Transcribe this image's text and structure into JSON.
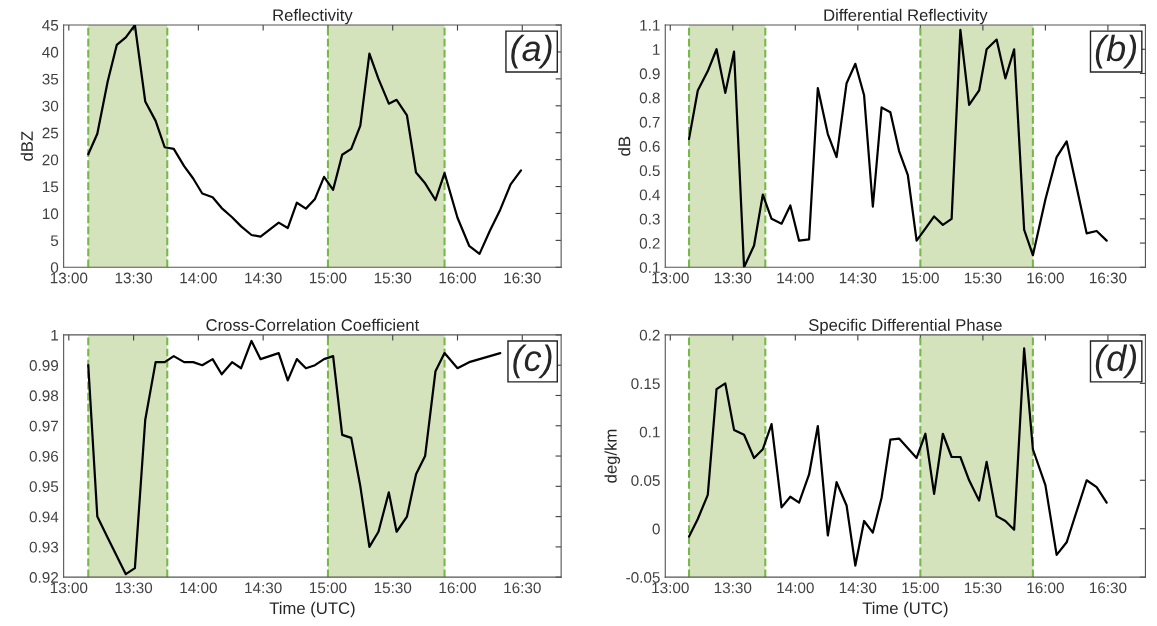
{
  "chart_data": [
    {
      "type": "line",
      "title": "Reflectivity",
      "ylabel": "dBZ",
      "annotations": [
        "(a)"
      ],
      "x": [
        13.15,
        13.22,
        13.3,
        13.37,
        13.44,
        13.51,
        13.59,
        13.67,
        13.74,
        13.81,
        13.89,
        13.96,
        14.03,
        14.11,
        14.18,
        14.26,
        14.33,
        14.41,
        14.48,
        14.55,
        14.62,
        14.69,
        14.76,
        14.83,
        14.9,
        14.97,
        15.04,
        15.11,
        15.18,
        15.25,
        15.32,
        15.39,
        15.47,
        15.53,
        15.61,
        15.68,
        15.75,
        15.83,
        15.9,
        16.0,
        16.09,
        16.17,
        16.25,
        16.33,
        16.41,
        16.49
      ],
      "ref_lines": [
        {
          "axis": "x",
          "value": 13.15,
          "color": "#77b84a",
          "line_style": "dashed"
        },
        {
          "axis": "x",
          "value": 13.76,
          "color": "#77b84a",
          "line_style": "dashed"
        },
        {
          "axis": "x",
          "value": 15.0,
          "color": "#77b84a",
          "line_style": "dashed"
        },
        {
          "axis": "x",
          "value": 15.9,
          "color": "#77b84a",
          "line_style": "dashed"
        }
      ],
      "series": [
        {
          "color": "#000000",
          "values": [
            21,
            24.8,
            34.5,
            41.3,
            42.7,
            45,
            30.8,
            27.2,
            22.3,
            22,
            18.8,
            16.5,
            13.7,
            13,
            11,
            9.3,
            7.6,
            6,
            5.7,
            7,
            8.3,
            7.3,
            12,
            10.9,
            12.7,
            16.8,
            14.4,
            20.9,
            22,
            26.3,
            39.7,
            35,
            30.4,
            31.1,
            28.2,
            17.6,
            15.6,
            12.5,
            17.5,
            9.2,
            4,
            2.5,
            6.8,
            10.7,
            15.4,
            18
          ]
        }
      ],
      "xlim": [
        12.96,
        16.8
      ],
      "ylim": [
        0,
        45
      ],
      "yticks": [
        0,
        5,
        10,
        15,
        20,
        25,
        30,
        35,
        40,
        45
      ],
      "xticks": [
        {
          "value": 13,
          "label": "13:00"
        },
        {
          "value": 13.5,
          "label": "13:30"
        },
        {
          "value": 14,
          "label": "14:00"
        },
        {
          "value": 14.5,
          "label": "14:30"
        },
        {
          "value": 15,
          "label": "15:00"
        },
        {
          "value": 15.5,
          "label": "15:30"
        },
        {
          "value": 16,
          "label": "16:00"
        },
        {
          "value": 16.5,
          "label": "16:30"
        }
      ],
      "bands": [
        {
          "axis": "x",
          "from": 13.15,
          "to": 13.76,
          "color": "#d4e3bc"
        },
        {
          "axis": "x",
          "from": 15.0,
          "to": 15.9,
          "color": "#d4e3bc"
        }
      ],
      "grid": false,
      "legend": false
    },
    {
      "type": "line",
      "title": "Differential Reflectivity",
      "ylabel": "dB",
      "annotations": [
        "(b)"
      ],
      "x": [
        13.15,
        13.22,
        13.3,
        13.37,
        13.44,
        13.51,
        13.59,
        13.67,
        13.74,
        13.81,
        13.89,
        13.96,
        14.03,
        14.11,
        14.18,
        14.26,
        14.33,
        14.41,
        14.48,
        14.55,
        14.62,
        14.69,
        14.76,
        14.83,
        14.9,
        14.97,
        15.04,
        15.11,
        15.18,
        15.25,
        15.32,
        15.39,
        15.47,
        15.53,
        15.61,
        15.68,
        15.75,
        15.83,
        15.9,
        16.0,
        16.09,
        16.17,
        16.25,
        16.33,
        16.41,
        16.49
      ],
      "ref_lines": [
        {
          "axis": "x",
          "value": 13.15,
          "color": "#77b84a",
          "line_style": "dashed"
        },
        {
          "axis": "x",
          "value": 13.76,
          "color": "#77b84a",
          "line_style": "dashed"
        },
        {
          "axis": "x",
          "value": 15.0,
          "color": "#77b84a",
          "line_style": "dashed"
        },
        {
          "axis": "x",
          "value": 15.9,
          "color": "#77b84a",
          "line_style": "dashed"
        }
      ],
      "series": [
        {
          "color": "#000000",
          "values": [
            0.63,
            0.83,
            0.91,
            1.0,
            0.82,
            0.99,
            0.1,
            0.19,
            0.4,
            0.3,
            0.28,
            0.355,
            0.21,
            0.215,
            0.84,
            0.65,
            0.555,
            0.86,
            0.94,
            0.81,
            0.35,
            0.76,
            0.74,
            0.58,
            0.48,
            0.21,
            0.26,
            0.31,
            0.275,
            0.3,
            1.08,
            0.77,
            0.83,
            1.0,
            1.04,
            0.88,
            1.0,
            0.255,
            0.15,
            0.38,
            0.555,
            0.62,
            0.43,
            0.24,
            0.25,
            0.21
          ]
        }
      ],
      "xlim": [
        12.96,
        16.8
      ],
      "ylim": [
        0.1,
        1.1
      ],
      "yticks": [
        0.1,
        0.2,
        0.3,
        0.4,
        0.5,
        0.6,
        0.7,
        0.8,
        0.9,
        1,
        1.1
      ],
      "xticks": [
        {
          "value": 13,
          "label": "13:00"
        },
        {
          "value": 13.5,
          "label": "13:30"
        },
        {
          "value": 14,
          "label": "14:00"
        },
        {
          "value": 14.5,
          "label": "14:30"
        },
        {
          "value": 15,
          "label": "15:00"
        },
        {
          "value": 15.5,
          "label": "15:30"
        },
        {
          "value": 16,
          "label": "16:00"
        },
        {
          "value": 16.5,
          "label": "16:30"
        }
      ],
      "bands": [
        {
          "axis": "x",
          "from": 13.15,
          "to": 13.76,
          "color": "#d4e3bc"
        },
        {
          "axis": "x",
          "from": 15.0,
          "to": 15.9,
          "color": "#d4e3bc"
        }
      ],
      "grid": false,
      "legend": false
    },
    {
      "type": "line",
      "title": "Cross-Correlation Coefficient",
      "xlabel": "Time (UTC)",
      "annotations": [
        "(c)"
      ],
      "series": [
        {
          "color": "#000000",
          "x": [
            13.15,
            13.22,
            13.3,
            13.37,
            13.44,
            13.51,
            13.59,
            13.67,
            13.74,
            13.81,
            13.89,
            13.96,
            14.03,
            14.11,
            14.18,
            14.26,
            14.33,
            14.41,
            14.48,
            14.55,
            14.62,
            14.69,
            14.76,
            14.83,
            14.9,
            14.97,
            15.04,
            15.11,
            15.18,
            15.25,
            15.32,
            15.39,
            15.47,
            15.53,
            15.61,
            15.68,
            15.75,
            15.83,
            15.9,
            16.0,
            16.09,
            16.17,
            16.25,
            16.33
          ],
          "values": [
            0.99,
            0.94,
            0.933,
            0.927,
            0.921,
            0.923,
            0.972,
            0.991,
            0.991,
            0.993,
            0.991,
            0.991,
            0.99,
            0.992,
            0.987,
            0.991,
            0.989,
            0.998,
            0.992,
            0.993,
            0.994,
            0.985,
            0.992,
            0.989,
            0.99,
            0.992,
            0.993,
            0.967,
            0.966,
            0.95,
            0.93,
            0.935,
            0.948,
            0.935,
            0.94,
            0.954,
            0.96,
            0.988,
            0.994,
            0.989,
            0.991,
            0.992,
            0.993,
            0.994
          ]
        }
      ],
      "ref_lines": [
        {
          "axis": "x",
          "value": 13.15,
          "color": "#77b84a",
          "line_style": "dashed"
        },
        {
          "axis": "x",
          "value": 13.76,
          "color": "#77b84a",
          "line_style": "dashed"
        },
        {
          "axis": "x",
          "value": 15.0,
          "color": "#77b84a",
          "line_style": "dashed"
        },
        {
          "axis": "x",
          "value": 15.9,
          "color": "#77b84a",
          "line_style": "dashed"
        }
      ],
      "xlim": [
        12.96,
        16.8
      ],
      "ylim": [
        0.92,
        1
      ],
      "yticks": [
        0.92,
        0.93,
        0.94,
        0.95,
        0.96,
        0.97,
        0.98,
        0.99,
        1
      ],
      "xticks": [
        {
          "value": 13,
          "label": "13:00"
        },
        {
          "value": 13.5,
          "label": "13:30"
        },
        {
          "value": 14,
          "label": "14:00"
        },
        {
          "value": 14.5,
          "label": "14:30"
        },
        {
          "value": 15,
          "label": "15:00"
        },
        {
          "value": 15.5,
          "label": "15:30"
        },
        {
          "value": 16,
          "label": "16:00"
        },
        {
          "value": 16.5,
          "label": "16:30"
        }
      ],
      "bands": [
        {
          "axis": "x",
          "from": 13.15,
          "to": 13.76,
          "color": "#d4e3bc"
        },
        {
          "axis": "x",
          "from": 15.0,
          "to": 15.9,
          "color": "#d4e3bc"
        }
      ],
      "grid": false,
      "legend": false
    },
    {
      "type": "line",
      "title": "Specific Differential Phase",
      "xlabel": "Time (UTC)",
      "ylabel": "deg/km",
      "annotations": [
        "(d)"
      ],
      "x": [
        13.15,
        13.22,
        13.3,
        13.37,
        13.44,
        13.51,
        13.59,
        13.67,
        13.74,
        13.81,
        13.89,
        13.96,
        14.03,
        14.11,
        14.18,
        14.26,
        14.33,
        14.41,
        14.48,
        14.55,
        14.62,
        14.69,
        14.76,
        14.83,
        14.9,
        14.97,
        15.04,
        15.11,
        15.18,
        15.25,
        15.32,
        15.39,
        15.47,
        15.53,
        15.61,
        15.68,
        15.75,
        15.83,
        15.9,
        16.0,
        16.09,
        16.17,
        16.25,
        16.33,
        16.41,
        16.49
      ],
      "ref_lines": [
        {
          "axis": "x",
          "value": 13.15,
          "color": "#77b84a",
          "line_style": "dashed"
        },
        {
          "axis": "x",
          "value": 13.76,
          "color": "#77b84a",
          "line_style": "dashed"
        },
        {
          "axis": "x",
          "value": 15.0,
          "color": "#77b84a",
          "line_style": "dashed"
        },
        {
          "axis": "x",
          "value": 15.9,
          "color": "#77b84a",
          "line_style": "dashed"
        }
      ],
      "series": [
        {
          "color": "#000000",
          "values": [
            -0.008,
            0.01,
            0.035,
            0.144,
            0.15,
            0.102,
            0.097,
            0.073,
            0.082,
            0.108,
            0.022,
            0.033,
            0.027,
            0.056,
            0.106,
            -0.007,
            0.048,
            0.024,
            -0.038,
            0.008,
            -0.004,
            0.032,
            0.092,
            0.093,
            0.083,
            0.073,
            0.098,
            0.036,
            0.098,
            0.074,
            0.074,
            0.05,
            0.029,
            0.069,
            0.013,
            0.008,
            -0.001,
            0.186,
            0.082,
            0.045,
            -0.027,
            -0.014,
            0.018,
            0.05,
            0.043,
            0.027
          ]
        }
      ],
      "xlim": [
        12.96,
        16.8
      ],
      "ylim": [
        -0.05,
        0.2
      ],
      "yticks": [
        -0.05,
        0,
        0.05,
        0.1,
        0.15,
        0.2
      ],
      "xticks": [
        {
          "value": 13,
          "label": "13:00"
        },
        {
          "value": 13.5,
          "label": "13:30"
        },
        {
          "value": 14,
          "label": "14:00"
        },
        {
          "value": 14.5,
          "label": "14:30"
        },
        {
          "value": 15,
          "label": "15:00"
        },
        {
          "value": 15.5,
          "label": "15:30"
        },
        {
          "value": 16,
          "label": "16:00"
        },
        {
          "value": 16.5,
          "label": "16:30"
        }
      ],
      "bands": [
        {
          "axis": "x",
          "from": 13.15,
          "to": 13.76,
          "color": "#d4e3bc"
        },
        {
          "axis": "x",
          "from": 15.0,
          "to": 15.9,
          "color": "#d4e3bc"
        }
      ],
      "grid": false,
      "legend": false
    }
  ]
}
